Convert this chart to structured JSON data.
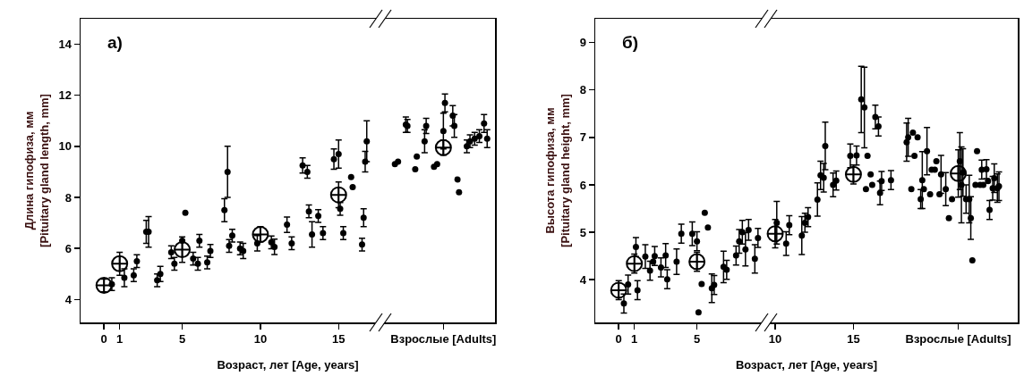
{
  "chart_data": [
    {
      "type": "scatter",
      "xlabel": "Возраст, лет [Age, years]",
      "ylabel": "Длина гипофиза, мм\n[Pituitary gland length, mm]",
      "annotations": [
        "а)"
      ],
      "xlim": [
        -1.5,
        25
      ],
      "xticks": [
        0,
        1,
        5,
        10,
        15,
        {
          "value": 21.7,
          "label": "Взрослые [Adults]"
        }
      ],
      "ylim": [
        3.1,
        15
      ],
      "yticks": [
        4,
        6,
        8,
        10,
        12,
        14
      ],
      "grid": false,
      "series": [
        {
          "color": "#000000",
          "x": [
            0.5,
            1.3,
            1.9,
            2.1,
            2.7,
            2.85,
            3.4,
            3.6,
            4.3,
            4.5,
            5.0,
            5.2,
            5.7,
            6.0,
            6.1,
            6.6,
            6.8,
            7.7,
            7.9,
            8.0,
            8.2,
            8.7,
            8.9,
            9.8,
            10.7,
            10.9,
            11.7,
            12.0,
            12.7,
            13.0,
            13.1,
            13.3,
            13.7,
            14.0,
            14.7,
            15.0,
            15.1,
            15.3,
            15.8,
            15.9,
            16.5,
            16.6,
            16.7,
            16.8,
            18.6,
            18.8,
            19.3,
            19.4,
            19.9,
            20.0,
            20.5,
            20.6,
            21.1,
            21.3,
            21.7,
            21.8,
            22.3,
            22.4,
            22.6,
            22.7,
            23.2,
            23.4,
            23.7,
            24.0,
            24.3,
            24.5
          ],
          "values": [
            4.6,
            4.85,
            4.95,
            5.5,
            6.65,
            6.65,
            4.75,
            5.0,
            5.85,
            5.4,
            6.3,
            7.4,
            5.6,
            5.4,
            6.3,
            5.45,
            5.9,
            7.5,
            9.0,
            6.1,
            6.5,
            6.0,
            5.9,
            6.2,
            6.24,
            6.06,
            6.93,
            6.2,
            9.25,
            9.0,
            7.45,
            6.55,
            7.27,
            6.6,
            9.5,
            9.7,
            7.55,
            6.6,
            8.8,
            8.4,
            6.15,
            7.2,
            9.4,
            10.2,
            9.3,
            9.4,
            10.85,
            10.8,
            9.1,
            9.6,
            10.2,
            10.8,
            9.2,
            9.3,
            10.6,
            11.7,
            11.2,
            10.8,
            8.7,
            8.2,
            10.0,
            10.2,
            10.3,
            10.4,
            10.9,
            10.3
          ],
          "errors": [
            0.25,
            0.35,
            0.25,
            0.25,
            0.45,
            0.6,
            0.25,
            0.3,
            0.25,
            0.25,
            null,
            null,
            0.25,
            0.25,
            0.25,
            0.25,
            0.25,
            0.45,
            1.0,
            0.25,
            0.25,
            0.25,
            0.3,
            0.3,
            0.25,
            0.3,
            0.3,
            0.25,
            0.3,
            0.25,
            0.25,
            0.5,
            0.25,
            0.25,
            0.4,
            0.55,
            0.25,
            0.25,
            null,
            null,
            0.25,
            0.35,
            0.4,
            0.8,
            null,
            null,
            0.3,
            0.25,
            null,
            null,
            0.45,
            0.3,
            null,
            null,
            0.7,
            0.35,
            0.4,
            0.45,
            null,
            null,
            0.25,
            0.25,
            0.25,
            0.25,
            0.35,
            0.35
          ]
        },
        {
          "color": "#000000",
          "marker": "cross",
          "x": [
            0,
            1,
            5,
            10,
            15,
            21.7
          ],
          "values": [
            4.55,
            5.4,
            5.95,
            6.55,
            8.1,
            9.95
          ],
          "errors": [
            0.25,
            0.45,
            0.5,
            0.3,
            0.5,
            0.3
          ]
        }
      ]
    },
    {
      "type": "scatter",
      "xlabel": "Возраст, лет [Age, years]",
      "ylabel": "Высота гипофиза, мм\n[Pituitary gland height, mm]",
      "annotations": [
        "б)"
      ],
      "xlim": [
        -1.5,
        25.5
      ],
      "xticks": [
        0,
        1,
        5,
        10,
        15,
        {
          "value": 21.7,
          "label": "Взрослые [Adults]"
        }
      ],
      "ylim": [
        3.1,
        9.5
      ],
      "yticks": [
        4,
        5,
        6,
        7,
        8,
        9
      ],
      "grid": false,
      "series": [
        {
          "color": "#000000",
          "x": [
            0.33,
            0.6,
            1.1,
            1.2,
            1.7,
            2.0,
            2.2,
            2.3,
            2.7,
            3.0,
            3.1,
            3.7,
            4.0,
            4.7,
            5.0,
            5.1,
            5.3,
            5.5,
            5.7,
            5.95,
            6.1,
            6.7,
            6.9,
            7.5,
            7.7,
            7.9,
            8.1,
            8.3,
            8.7,
            8.9,
            10.1,
            10.7,
            10.9,
            11.7,
            11.9,
            12.1,
            12.7,
            12.9,
            13.1,
            13.2,
            13.7,
            13.9,
            14.8,
            15.2,
            15.5,
            15.7,
            15.8,
            15.9,
            16.1,
            16.2,
            16.4,
            16.6,
            16.7,
            16.8,
            17.4,
            18.4,
            18.5,
            18.8,
            19.1,
            18.7,
            18.9,
            19.3,
            19.4,
            19.5,
            19.7,
            19.9,
            20.0,
            20.2,
            20.3,
            20.5,
            20.6,
            20.9,
            21.1,
            21.3,
            21.8,
            21.9,
            22.0,
            22.2,
            22.4,
            22.5,
            22.6,
            22.9,
            22.8,
            23.1,
            23.3,
            23.2,
            23.5,
            23.6,
            23.7,
            24.0,
            23.9,
            24.2,
            24.3
          ],
          "values": [
            3.5,
            3.9,
            4.69,
            3.78,
            4.49,
            4.19,
            4.38,
            4.5,
            4.26,
            4.51,
            4.01,
            4.38,
            4.97,
            4.97,
            4.81,
            3.31,
            3.91,
            5.41,
            5.1,
            3.82,
            3.89,
            4.27,
            4.21,
            4.51,
            4.81,
            5.0,
            4.64,
            5.05,
            4.44,
            4.88,
            5.2,
            4.76,
            5.15,
            4.93,
            5.2,
            5.32,
            5.69,
            6.2,
            6.15,
            6.82,
            6.0,
            6.09,
            6.61,
            6.62,
            7.8,
            7.63,
            5.91,
            6.61,
            6.22,
            6.0,
            7.43,
            7.23,
            5.83,
            6.08,
            6.1,
            6.9,
            7.0,
            7.1,
            7.0,
            5.91,
            6.61,
            5.7,
            6.1,
            5.91,
            6.71,
            5.8,
            6.32,
            6.32,
            6.5,
            5.8,
            6.22,
            5.91,
            5.3,
            5.7,
            6.5,
            6.0,
            6.26,
            5.7,
            5.7,
            5.3,
            4.41,
            6.71,
            6.0,
            6.0,
            6.0,
            6.32,
            6.33,
            6.08,
            5.47,
            6.14,
            5.93,
            5.93,
            5.97
          ],
          "errors": [
            0.2,
            0.2,
            0.2,
            0.2,
            0.25,
            0.2,
            null,
            0.2,
            0.2,
            0.25,
            0.2,
            0.27,
            0.2,
            0.25,
            0.2,
            null,
            null,
            null,
            null,
            0.3,
            0.2,
            0.33,
            0.2,
            0.2,
            0.25,
            0.25,
            0.35,
            0.22,
            0.3,
            0.2,
            0.45,
            0.25,
            0.2,
            0.4,
            0.2,
            0.2,
            0.35,
            0.3,
            0.3,
            0.5,
            0.25,
            0.2,
            0.25,
            0.2,
            0.7,
            0.85,
            null,
            null,
            null,
            null,
            0.25,
            0.2,
            0.25,
            0.2,
            0.2,
            0.4,
            0.4,
            null,
            null,
            null,
            null,
            0.2,
            0.6,
            null,
            0.5,
            null,
            null,
            null,
            null,
            null,
            0.4,
            0.35,
            null,
            null,
            0.6,
            0.8,
            0.5,
            0.3,
            0.5,
            0.45,
            null,
            null,
            null,
            null,
            null,
            0.2,
            0.2,
            null,
            0.2,
            0.3,
            0.25,
            0.3,
            0.3
          ]
        },
        {
          "color": "#000000",
          "marker": "cross",
          "x": [
            0,
            1,
            5,
            10,
            15,
            21.7
          ],
          "values": [
            3.78,
            4.34,
            4.38,
            4.97,
            6.22,
            6.24
          ],
          "errors": [
            0.2,
            0.2,
            0.2,
            0.3,
            0.2,
            0.5
          ]
        }
      ]
    }
  ]
}
